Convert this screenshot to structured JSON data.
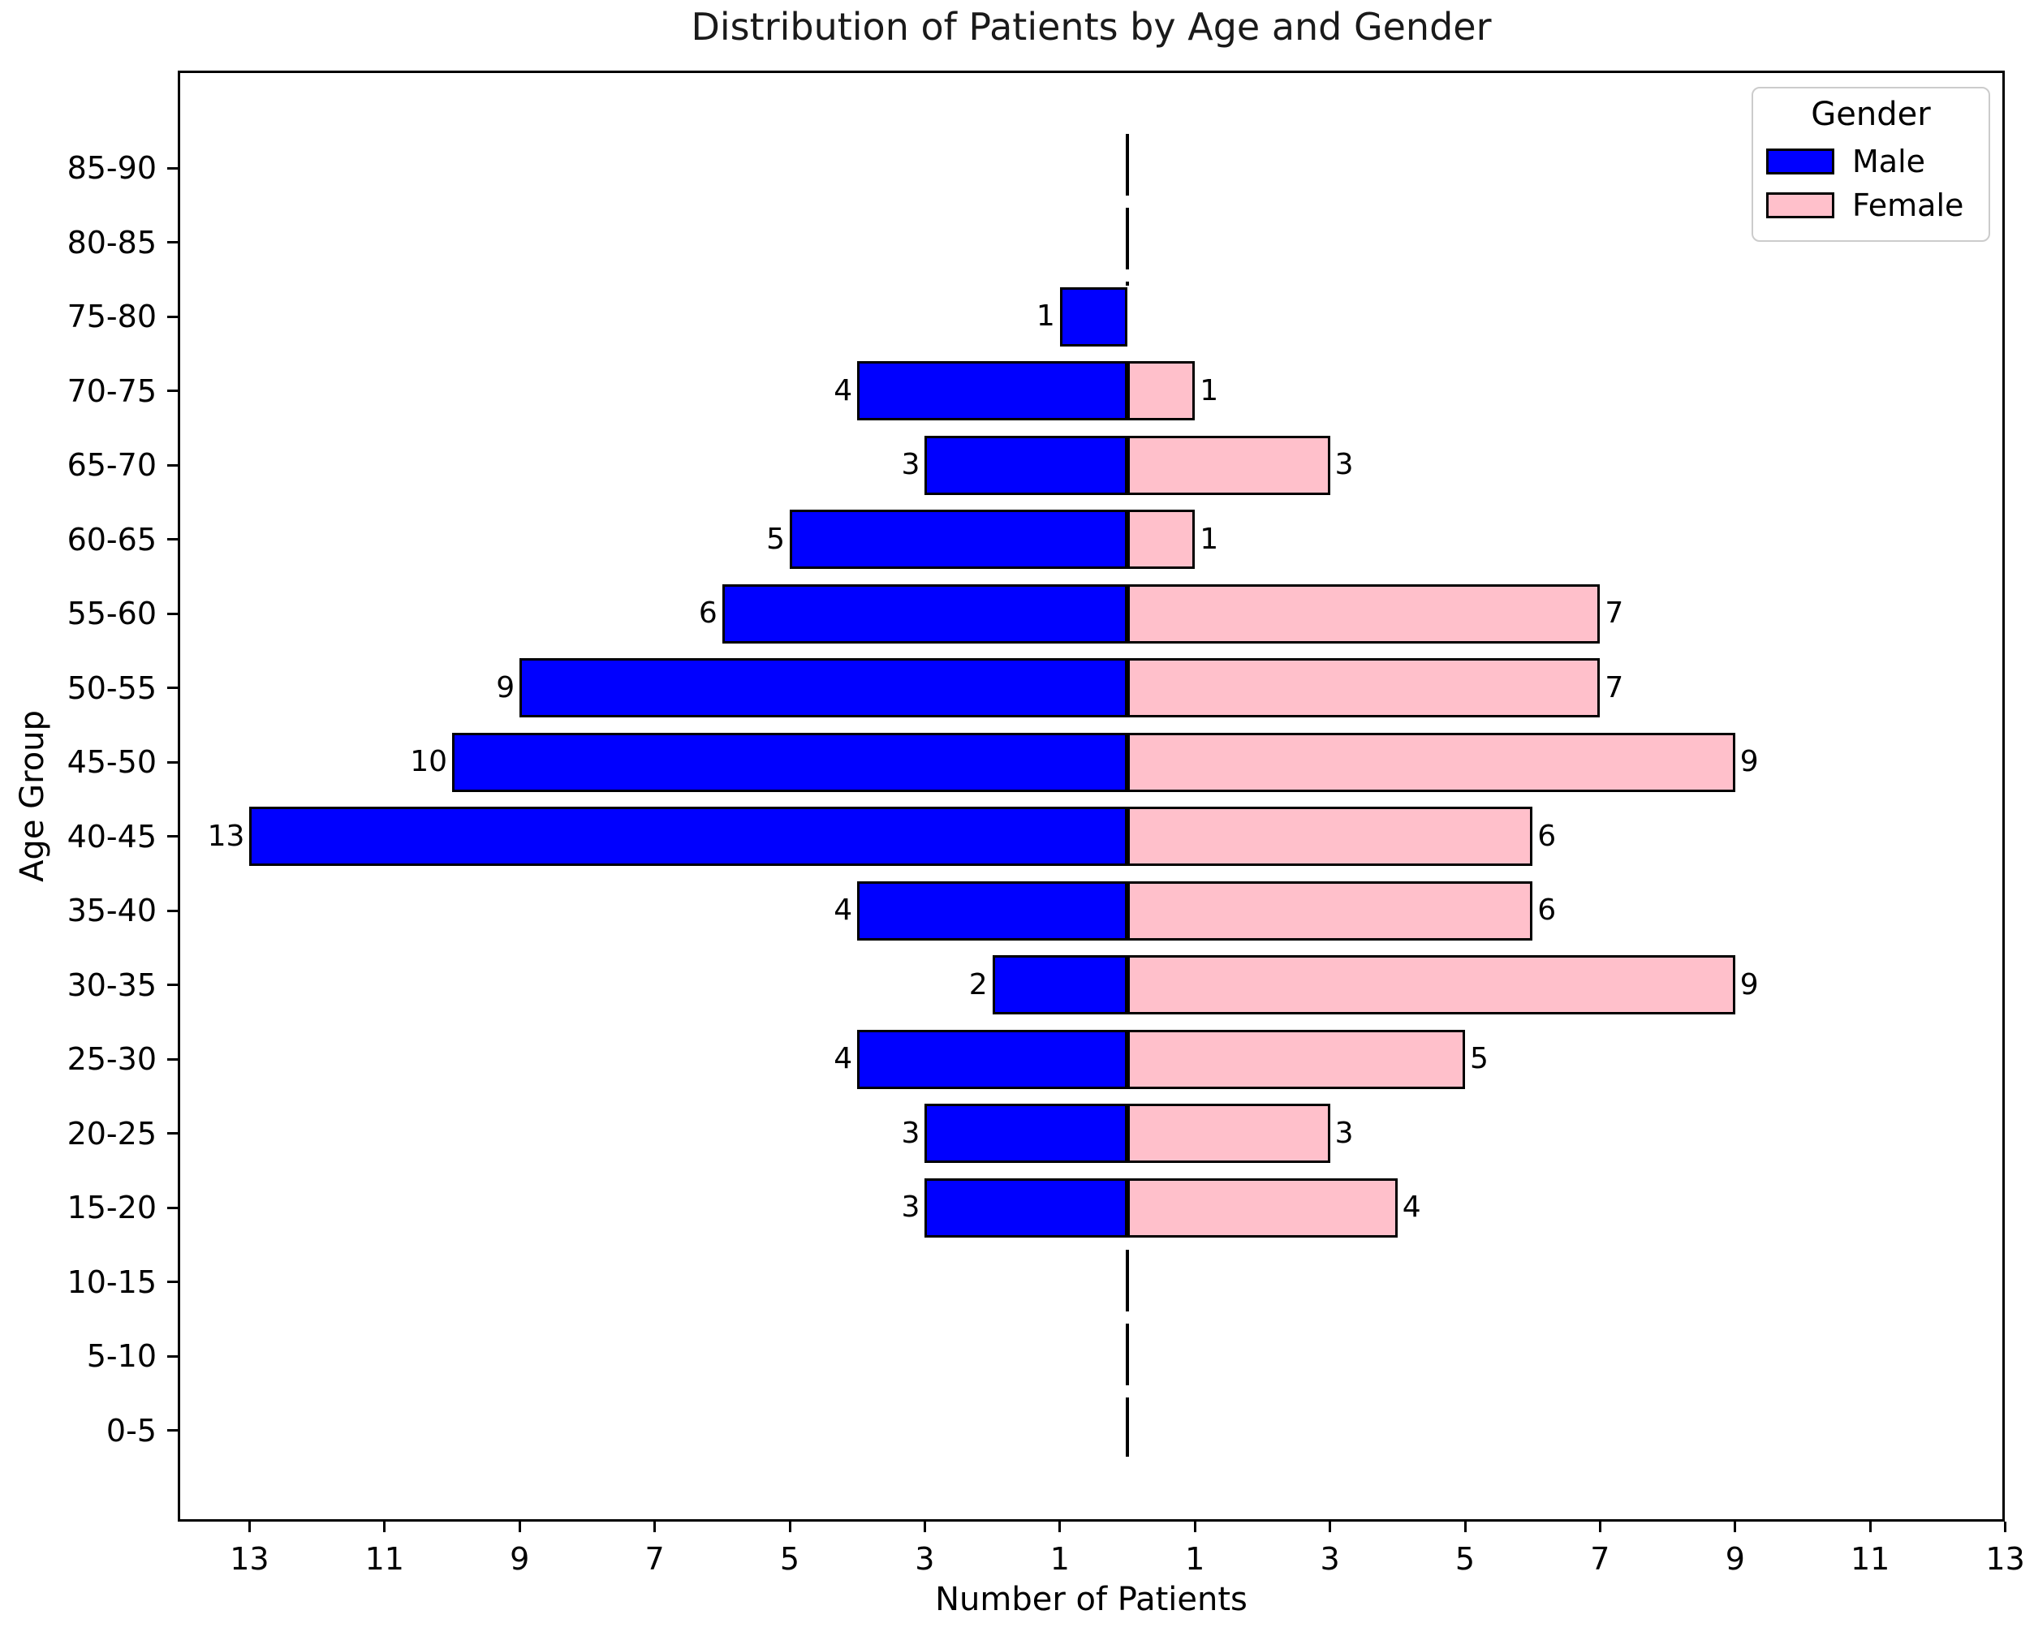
{
  "figure": {
    "title": "Distribution of Patients by Age and Gender",
    "xlabel": "Number of Patients",
    "ylabel": "Age Group"
  },
  "legend": {
    "title": "Gender",
    "entries": [
      {
        "label": "Male",
        "color": "#0000FF"
      },
      {
        "label": "Female",
        "color": "#FFC0CB"
      }
    ]
  },
  "colors": {
    "male": "#0000FF",
    "female": "#FFC0CB",
    "bar_edge": "#000000",
    "zero_line": "#000000",
    "legend_border": "#CCCCCC",
    "background": "#FFFFFF"
  },
  "x_tick_labels": [
    "13",
    "11",
    "9",
    "7",
    "5",
    "3",
    "1",
    "1",
    "3",
    "5",
    "7",
    "9",
    "11",
    "13"
  ],
  "x_tick_values": [
    -13,
    -11,
    -9,
    -7,
    -5,
    -3,
    -1,
    1,
    3,
    5,
    7,
    9,
    11,
    13
  ],
  "chart_data": {
    "type": "bar",
    "orientation": "horizontal-pyramid",
    "title": "Distribution of Patients by Age and Gender",
    "xlabel": "Number of Patients",
    "ylabel": "Age Group",
    "categories_top_to_bottom": [
      "85-90",
      "80-85",
      "75-80",
      "70-75",
      "65-70",
      "60-65",
      "55-60",
      "50-55",
      "45-50",
      "40-45",
      "35-40",
      "30-35",
      "25-30",
      "20-25",
      "15-20",
      "10-15",
      "5-10",
      "0-5"
    ],
    "series": [
      {
        "name": "Male",
        "side": "left",
        "color": "#0000FF",
        "values": [
          0,
          0,
          1,
          4,
          3,
          5,
          6,
          9,
          10,
          13,
          4,
          2,
          4,
          3,
          3,
          0,
          0,
          0
        ]
      },
      {
        "name": "Female",
        "side": "right",
        "color": "#FFC0CB",
        "values": [
          0,
          0,
          0,
          1,
          3,
          1,
          7,
          7,
          9,
          6,
          6,
          9,
          5,
          3,
          4,
          0,
          0,
          0
        ]
      }
    ],
    "bar_value_labels_shown": true,
    "x_ticks": [
      -13,
      -11,
      -9,
      -7,
      -5,
      -3,
      -1,
      1,
      3,
      5,
      7,
      9,
      11,
      13
    ],
    "xlim": [
      -14.1,
      13
    ],
    "grid": false,
    "zero_line": {
      "x": 0,
      "style": "dashed",
      "color": "#000000"
    },
    "legend": {
      "title": "Gender",
      "position": "upper-right",
      "entries": [
        "Male",
        "Female"
      ]
    }
  }
}
